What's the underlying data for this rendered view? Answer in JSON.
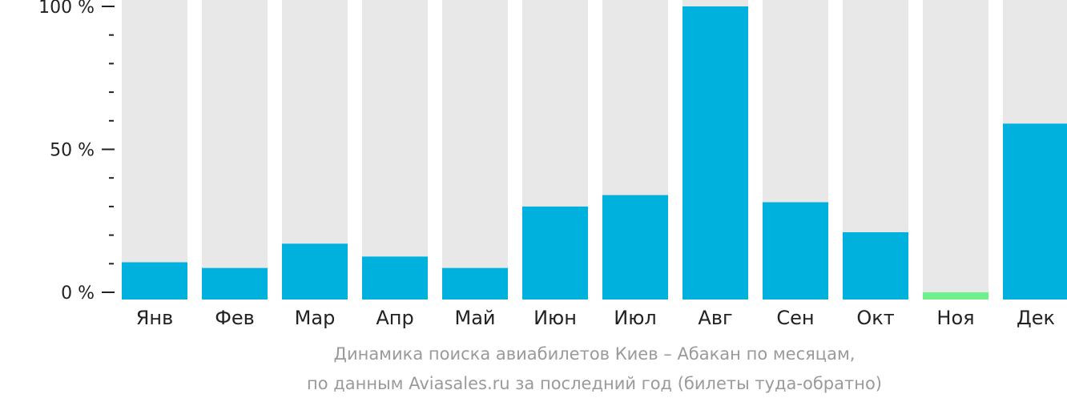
{
  "chart_data": {
    "type": "bar",
    "categories": [
      "Янв",
      "Фев",
      "Мар",
      "Апр",
      "Май",
      "Июн",
      "Июл",
      "Авг",
      "Сен",
      "Окт",
      "Ноя",
      "Дек"
    ],
    "values": [
      10.5,
      8.5,
      17,
      12.5,
      8.5,
      30,
      34,
      100,
      31.5,
      21,
      0.5,
      59
    ],
    "ylim": [
      0,
      100
    ],
    "yticks": [
      {
        "value": 100,
        "label": "100 %"
      },
      {
        "value": 50,
        "label": "50 %"
      },
      {
        "value": 0,
        "label": "0 %"
      }
    ],
    "minor_tick_step": 10,
    "colors": {
      "bar": "#00b0dd",
      "bar_min": "#6ef08a",
      "track": "#e8e8e8",
      "axis": "#222222"
    },
    "highlight_min_index": 10,
    "caption_line1": "Динамика поиска авиабилетов Киев – Абакан по месяцам,",
    "caption_line2": "по данным Aviasales.ru за последний год (билеты туда-обратно)"
  }
}
